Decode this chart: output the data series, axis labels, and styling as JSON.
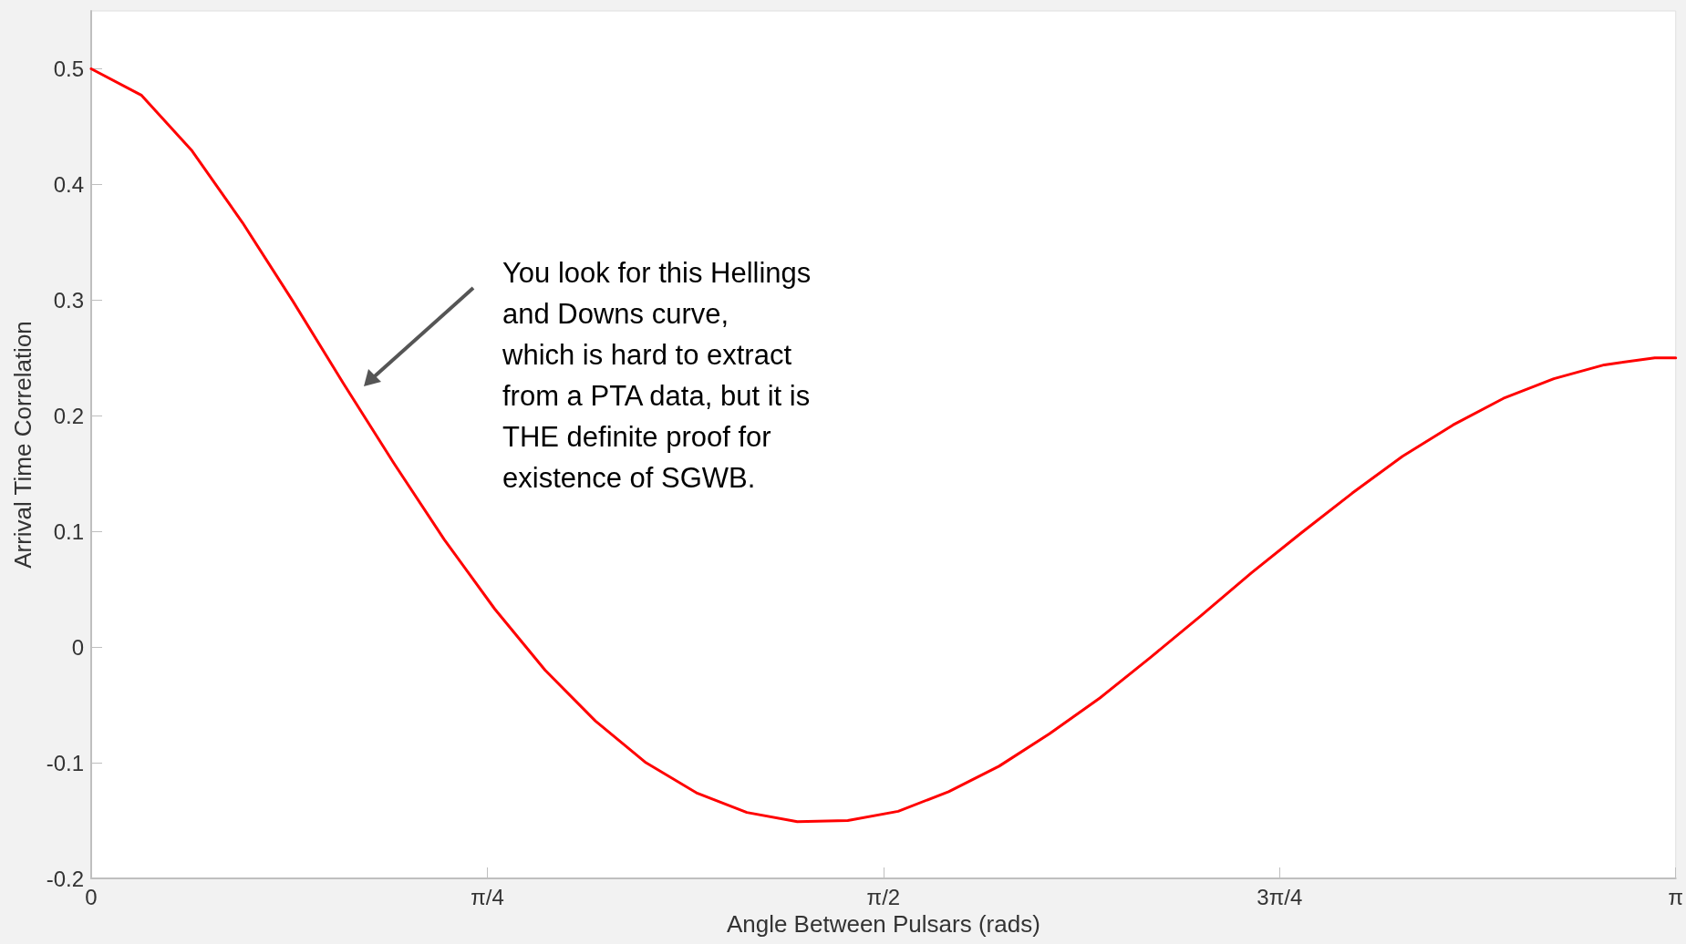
{
  "chart_data": {
    "type": "line",
    "xlabel": "Angle Between Pulsars (rads)",
    "ylabel": "Arrival Time Correlation",
    "x": [
      0,
      0.1,
      0.2,
      0.3,
      0.4,
      0.5,
      0.6,
      0.7,
      0.8,
      0.9,
      1.0,
      1.1,
      1.2,
      1.3,
      1.4,
      1.5,
      1.6,
      1.7,
      1.8,
      1.9,
      2.0,
      2.1,
      2.2,
      2.3,
      2.4,
      2.5,
      2.6,
      2.7,
      2.8,
      2.9,
      3.0,
      3.1,
      3.1416
    ],
    "series": [
      {
        "color": "#ff0000",
        "values": [
          0.5,
          0.477,
          0.429,
          0.367,
          0.299,
          0.228,
          0.159,
          0.093,
          0.033,
          -0.02,
          -0.064,
          -0.1,
          -0.126,
          -0.143,
          -0.151,
          -0.15,
          -0.142,
          -0.125,
          -0.103,
          -0.075,
          -0.044,
          -0.009,
          0.027,
          0.064,
          0.099,
          0.133,
          0.165,
          0.192,
          0.215,
          0.232,
          0.244,
          0.25,
          0.25
        ]
      }
    ],
    "xlim": [
      0,
      3.1416
    ],
    "xticks": [
      0,
      {
        "value": 0.7854,
        "label": "π/4"
      },
      {
        "value": 1.5708,
        "label": "π/2"
      },
      {
        "value": 2.3562,
        "label": "3π/4"
      },
      {
        "value": 3.1416,
        "label": "π"
      }
    ],
    "ylim": [
      -0.2,
      0.55
    ],
    "yticks": [
      -0.2,
      -0.1,
      0,
      0.1,
      0.2,
      0.3,
      0.4,
      0.5
    ],
    "annotations": [
      "You look for this Hellings\nand Downs curve,\nwhich is hard to extract\nfrom a PTA data, but it is\nTHE definite proof for\nexistence of SGWB."
    ],
    "grid": false,
    "marker": "none",
    "line_style": "solid"
  }
}
